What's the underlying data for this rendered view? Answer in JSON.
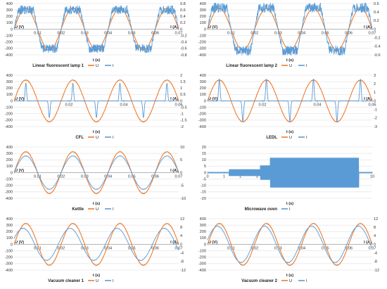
{
  "colors": {
    "voltage": "#ED7D31",
    "current": "#5B9BD5",
    "grid": "#D9D9D9",
    "axis": "#7F7F7F"
  },
  "chart_data": [
    {
      "type": "line",
      "title": "Linear fluorescent lamp 1",
      "xlabel": "t (s)",
      "ylabel_left": "U (V)",
      "ylabel_right": "I (A)",
      "xlim": [
        0,
        0.07
      ],
      "x_ticks": [
        "0.01",
        "0.02",
        "0.03",
        "0.04",
        "0.05",
        "0.06",
        "0.07"
      ],
      "ylim_left": [
        -400,
        400
      ],
      "y_ticks_left": [
        "400",
        "300",
        "200",
        "100",
        "0",
        "-100",
        "-200",
        "-300",
        "-400"
      ],
      "ylim_right": [
        -0.8,
        0.8
      ],
      "y_ticks_right": [
        "0.8",
        "0.6",
        "0.4",
        "0.2",
        "0",
        "-0.2",
        "-0.4",
        "-0.6",
        "-0.8"
      ],
      "grid": true,
      "legend_position": "bottom",
      "series": [
        {
          "name": "U",
          "color": "#ED7D31",
          "shape": "sine",
          "amplitude": 325,
          "period": 0.02,
          "phase": 0
        },
        {
          "name": "I",
          "color": "#5B9BD5",
          "shape": "fluorescent",
          "amplitude": 0.6,
          "period": 0.02,
          "phase": 0
        }
      ]
    },
    {
      "type": "line",
      "title": "Linear fluorescent lamp 2",
      "xlabel": "t (s)",
      "ylabel_left": "U (V)",
      "ylabel_right": "I (A)",
      "xlim": [
        0,
        0.07
      ],
      "x_ticks": [
        "0.01",
        "0.02",
        "0.03",
        "0.04",
        "0.05",
        "0.06",
        "0.07"
      ],
      "ylim_left": [
        -400,
        400
      ],
      "y_ticks_left": [
        "400",
        "300",
        "200",
        "100",
        "0",
        "-100",
        "-200",
        "-300",
        "-400"
      ],
      "ylim_right": [
        -0.6,
        0.6
      ],
      "y_ticks_right": [
        "0.6",
        "0.4",
        "0.2",
        "0",
        "-0.2",
        "-0.4",
        "-0.6"
      ],
      "grid": true,
      "legend_position": "bottom",
      "series": [
        {
          "name": "U",
          "color": "#ED7D31",
          "shape": "sine",
          "amplitude": 325,
          "period": 0.02,
          "phase": 0
        },
        {
          "name": "I",
          "color": "#5B9BD5",
          "shape": "fluorescent",
          "amplitude": 0.5,
          "period": 0.02,
          "phase": 0
        }
      ]
    },
    {
      "type": "line",
      "title": "CFL",
      "xlabel": "t (s)",
      "ylabel_left": "U (V)",
      "ylabel_right": "I (A)",
      "xlim": [
        0,
        0.07
      ],
      "x_ticks": [
        "0.02",
        "0.04",
        "0.06"
      ],
      "ylim_left": [
        -400,
        400
      ],
      "y_ticks_left": [
        "400",
        "300",
        "200",
        "100",
        "0",
        "-100",
        "-200",
        "-300",
        "-400"
      ],
      "ylim_right": [
        -2,
        2
      ],
      "y_ticks_right": [
        "2",
        "1.5",
        "1",
        "0.5",
        "0",
        "-0.5",
        "-1",
        "-1.5",
        "-2"
      ],
      "grid": true,
      "legend_position": "bottom",
      "series": [
        {
          "name": "U",
          "color": "#ED7D31",
          "shape": "sine",
          "amplitude": 325,
          "period": 0.02,
          "phase": 0
        },
        {
          "name": "I",
          "color": "#5B9BD5",
          "shape": "pulse",
          "amplitude": 1.3,
          "period": 0.02,
          "phase": 0
        }
      ]
    },
    {
      "type": "line",
      "title": "LEDL",
      "xlabel": "t (s)",
      "ylabel_left": "U (V)",
      "ylabel_right": "I (A)",
      "xlim": [
        0,
        0.07
      ],
      "x_ticks": [
        "0.02",
        "0.04",
        "0.06"
      ],
      "ylim_left": [
        -400,
        400
      ],
      "y_ticks_left": [
        "400",
        "300",
        "200",
        "100",
        "0",
        "-100",
        "-200",
        "-300",
        "-400"
      ],
      "ylim_right": [
        -3,
        3
      ],
      "y_ticks_right": [
        "3",
        "2",
        "1",
        "0",
        "-1",
        "-2",
        "-3"
      ],
      "grid": true,
      "legend_position": "bottom",
      "series": [
        {
          "name": "U",
          "color": "#ED7D31",
          "shape": "sine",
          "amplitude": 325,
          "period": 0.02,
          "phase": 0
        },
        {
          "name": "I",
          "color": "#5B9BD5",
          "shape": "pulse",
          "amplitude": 2.4,
          "period": 0.02,
          "phase": 0
        }
      ]
    },
    {
      "type": "line",
      "title": "Kettle",
      "xlabel": "t (s)",
      "ylabel_left": "U (V)",
      "ylabel_right": "I (A)",
      "xlim": [
        0,
        0.07
      ],
      "x_ticks": [
        "0.01",
        "0.02",
        "0.03",
        "0.04",
        "0.05",
        "0.06",
        "0.07"
      ],
      "ylim_left": [
        -400,
        400
      ],
      "y_ticks_left": [
        "400",
        "300",
        "200",
        "100",
        "0",
        "-100",
        "-200",
        "-300",
        "-400"
      ],
      "ylim_right": [
        -10,
        10
      ],
      "y_ticks_right": [
        "10",
        "5",
        "0",
        "-5",
        "-10"
      ],
      "grid": true,
      "legend_position": "bottom",
      "series": [
        {
          "name": "U",
          "color": "#ED7D31",
          "shape": "sine",
          "amplitude": 325,
          "period": 0.02,
          "phase": 0
        },
        {
          "name": "I",
          "color": "#5B9BD5",
          "shape": "sine",
          "amplitude": 6.5,
          "period": 0.02,
          "phase": 0
        }
      ]
    },
    {
      "type": "line",
      "title": "Microwave oven",
      "xlabel": "t (s)",
      "ylabel_left": "",
      "ylabel_right": "",
      "xlim": [
        0,
        10
      ],
      "x_ticks": [
        "0",
        "1",
        "2",
        "3",
        "4",
        "5",
        "6",
        "7",
        "8",
        "9",
        "10"
      ],
      "ylim_left": [
        -20,
        20
      ],
      "y_ticks_left": [
        "20",
        "15",
        "10",
        "5",
        "0",
        "-5",
        "-10",
        "-15",
        "-20"
      ],
      "ylim_right": null,
      "y_ticks_right": [],
      "grid": true,
      "legend_position": "bottom",
      "series": [
        {
          "name": "I",
          "color": "#5B9BD5",
          "shape": "envelope",
          "segments": [
            {
              "t_start": 0.0,
              "t_end": 1.3,
              "amplitude": 0.4
            },
            {
              "t_start": 1.3,
              "t_end": 3.2,
              "amplitude": 2.5
            },
            {
              "t_start": 3.2,
              "t_end": 3.8,
              "amplitude": 5.5
            },
            {
              "t_start": 3.8,
              "t_end": 9.2,
              "amplitude": 11.5
            },
            {
              "t_start": 9.2,
              "t_end": 10.0,
              "amplitude": 0.4
            }
          ]
        }
      ]
    },
    {
      "type": "line",
      "title": "Vacuum cleaner 1",
      "xlabel": "t (s)",
      "ylabel_left": "U (V)",
      "ylabel_right": "I (A)",
      "xlim": [
        0,
        0.07
      ],
      "x_ticks": [
        "0.01",
        "0.02",
        "0.03",
        "0.04",
        "0.05",
        "0.06",
        "0.07"
      ],
      "ylim_left": [
        -400,
        400
      ],
      "y_ticks_left": [
        "400",
        "300",
        "200",
        "100",
        "0",
        "-100",
        "-200",
        "-300",
        "-400"
      ],
      "ylim_right": [
        -12,
        12
      ],
      "y_ticks_right": [
        "12",
        "8",
        "4",
        "0",
        "-4",
        "-8",
        "-12"
      ],
      "grid": true,
      "legend_position": "bottom",
      "series": [
        {
          "name": "U",
          "color": "#ED7D31",
          "shape": "sine",
          "amplitude": 325,
          "period": 0.02,
          "phase": 0
        },
        {
          "name": "I",
          "color": "#5B9BD5",
          "shape": "sine",
          "amplitude": 7.5,
          "period": 0.02,
          "phase": 0.0012
        }
      ]
    },
    {
      "type": "line",
      "title": "Vacuum cleaner 2",
      "xlabel": "t (s)",
      "ylabel_left": "U (V)",
      "ylabel_right": "I (A)",
      "xlim": [
        0,
        0.07
      ],
      "x_ticks": [
        "0.01",
        "0.02",
        "0.03",
        "0.04",
        "0.05",
        "0.06",
        "0.07"
      ],
      "ylim_left": [
        -400,
        400
      ],
      "y_ticks_left": [
        "400",
        "300",
        "200",
        "100",
        "0",
        "-100",
        "-200",
        "-300",
        "-400"
      ],
      "ylim_right": [
        -12,
        12
      ],
      "y_ticks_right": [
        "12",
        "8",
        "4",
        "0",
        "-4",
        "-8",
        "-12"
      ],
      "grid": true,
      "legend_position": "bottom",
      "series": [
        {
          "name": "U",
          "color": "#ED7D31",
          "shape": "sine",
          "amplitude": 325,
          "period": 0.02,
          "phase": 0
        },
        {
          "name": "I",
          "color": "#5B9BD5",
          "shape": "sine",
          "amplitude": 8.5,
          "period": 0.02,
          "phase": 0.0008
        }
      ]
    }
  ]
}
